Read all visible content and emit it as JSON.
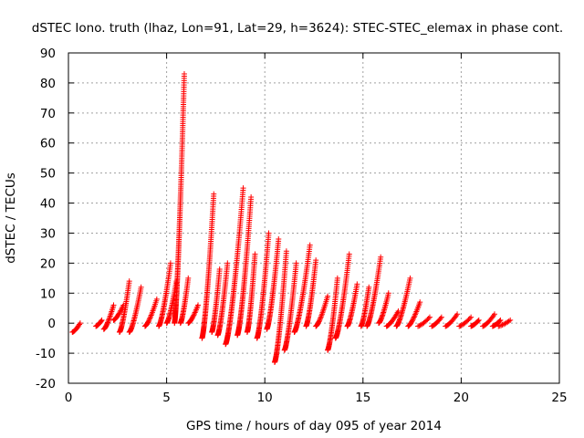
{
  "chart_data": {
    "type": "scatter",
    "title": "dSTEC Iono. truth (lhaz, Lon=91, Lat=29, h=3624): STEC-STEC_elemax in phase cont.",
    "xlabel": "GPS time / hours of day 095 of year 2014",
    "ylabel": "dSTEC  / TECUs",
    "xlim": [
      0,
      25
    ],
    "ylim": [
      -20,
      90
    ],
    "xticks": [
      0,
      5,
      10,
      15,
      20,
      25
    ],
    "yticks": [
      -20,
      -10,
      0,
      10,
      20,
      30,
      40,
      50,
      60,
      70,
      80,
      90
    ],
    "grid": true,
    "marker": "plus",
    "series": [
      {
        "color": "#ff0000",
        "arcs": [
          {
            "x": [
              0.2,
              0.6
            ],
            "y": [
              -3,
              0
            ]
          },
          {
            "x": [
              1.4,
              1.7
            ],
            "y": [
              -1,
              1
            ]
          },
          {
            "x": [
              1.8,
              2.3
            ],
            "y": [
              -2,
              6
            ]
          },
          {
            "x": [
              2.3,
              2.8
            ],
            "y": [
              1,
              6
            ]
          },
          {
            "x": [
              2.6,
              3.1
            ],
            "y": [
              -3,
              14
            ]
          },
          {
            "x": [
              3.1,
              3.7
            ],
            "y": [
              -3,
              12
            ]
          },
          {
            "x": [
              3.9,
              4.5
            ],
            "y": [
              -1,
              8
            ]
          },
          {
            "x": [
              4.6,
              5.2
            ],
            "y": [
              -1,
              20
            ]
          },
          {
            "x": [
              5.0,
              5.5
            ],
            "y": [
              0,
              14
            ]
          },
          {
            "x": [
              5.4,
              5.9
            ],
            "y": [
              0,
              83
            ]
          },
          {
            "x": [
              5.7,
              6.1
            ],
            "y": [
              0,
              15
            ]
          },
          {
            "x": [
              6.1,
              6.6
            ],
            "y": [
              0,
              6
            ]
          },
          {
            "x": [
              6.8,
              7.4
            ],
            "y": [
              -5,
              43
            ]
          },
          {
            "x": [
              7.3,
              7.7
            ],
            "y": [
              -3,
              18
            ]
          },
          {
            "x": [
              7.6,
              8.1
            ],
            "y": [
              -4,
              20
            ]
          },
          {
            "x": [
              8.0,
              8.9
            ],
            "y": [
              -7,
              45
            ]
          },
          {
            "x": [
              8.6,
              9.3
            ],
            "y": [
              -4,
              42
            ]
          },
          {
            "x": [
              9.1,
              9.5
            ],
            "y": [
              -3,
              23
            ]
          },
          {
            "x": [
              9.6,
              10.2
            ],
            "y": [
              -5,
              30
            ]
          },
          {
            "x": [
              10.1,
              10.7
            ],
            "y": [
              -2,
              28
            ]
          },
          {
            "x": [
              10.5,
              11.1
            ],
            "y": [
              -13,
              24
            ]
          },
          {
            "x": [
              11.0,
              11.6
            ],
            "y": [
              -9,
              20
            ]
          },
          {
            "x": [
              11.5,
              12.3
            ],
            "y": [
              -3,
              26
            ]
          },
          {
            "x": [
              12.1,
              12.6
            ],
            "y": [
              -1,
              21
            ]
          },
          {
            "x": [
              12.6,
              13.2
            ],
            "y": [
              -1,
              9
            ]
          },
          {
            "x": [
              13.2,
              13.7
            ],
            "y": [
              -9,
              15
            ]
          },
          {
            "x": [
              13.6,
              14.3
            ],
            "y": [
              -5,
              23
            ]
          },
          {
            "x": [
              14.2,
              14.7
            ],
            "y": [
              -1,
              13
            ]
          },
          {
            "x": [
              14.9,
              15.3
            ],
            "y": [
              -1,
              12
            ]
          },
          {
            "x": [
              15.2,
              15.9
            ],
            "y": [
              -1,
              22
            ]
          },
          {
            "x": [
              15.8,
              16.3
            ],
            "y": [
              0,
              10
            ]
          },
          {
            "x": [
              16.2,
              16.8
            ],
            "y": [
              -1,
              4
            ]
          },
          {
            "x": [
              16.7,
              17.4
            ],
            "y": [
              -1,
              15
            ]
          },
          {
            "x": [
              17.3,
              17.9
            ],
            "y": [
              -1,
              7
            ]
          },
          {
            "x": [
              17.8,
              18.4
            ],
            "y": [
              -1,
              2
            ]
          },
          {
            "x": [
              18.5,
              19.0
            ],
            "y": [
              -1,
              2
            ]
          },
          {
            "x": [
              19.2,
              19.8
            ],
            "y": [
              -1,
              3
            ]
          },
          {
            "x": [
              19.9,
              20.5
            ],
            "y": [
              -1,
              2
            ]
          },
          {
            "x": [
              20.5,
              20.9
            ],
            "y": [
              -1,
              1
            ]
          },
          {
            "x": [
              21.1,
              21.7
            ],
            "y": [
              -1,
              3
            ]
          },
          {
            "x": [
              21.6,
              22.0
            ],
            "y": [
              -1,
              1
            ]
          },
          {
            "x": [
              21.9,
              22.5
            ],
            "y": [
              -1,
              1
            ]
          }
        ]
      }
    ]
  }
}
